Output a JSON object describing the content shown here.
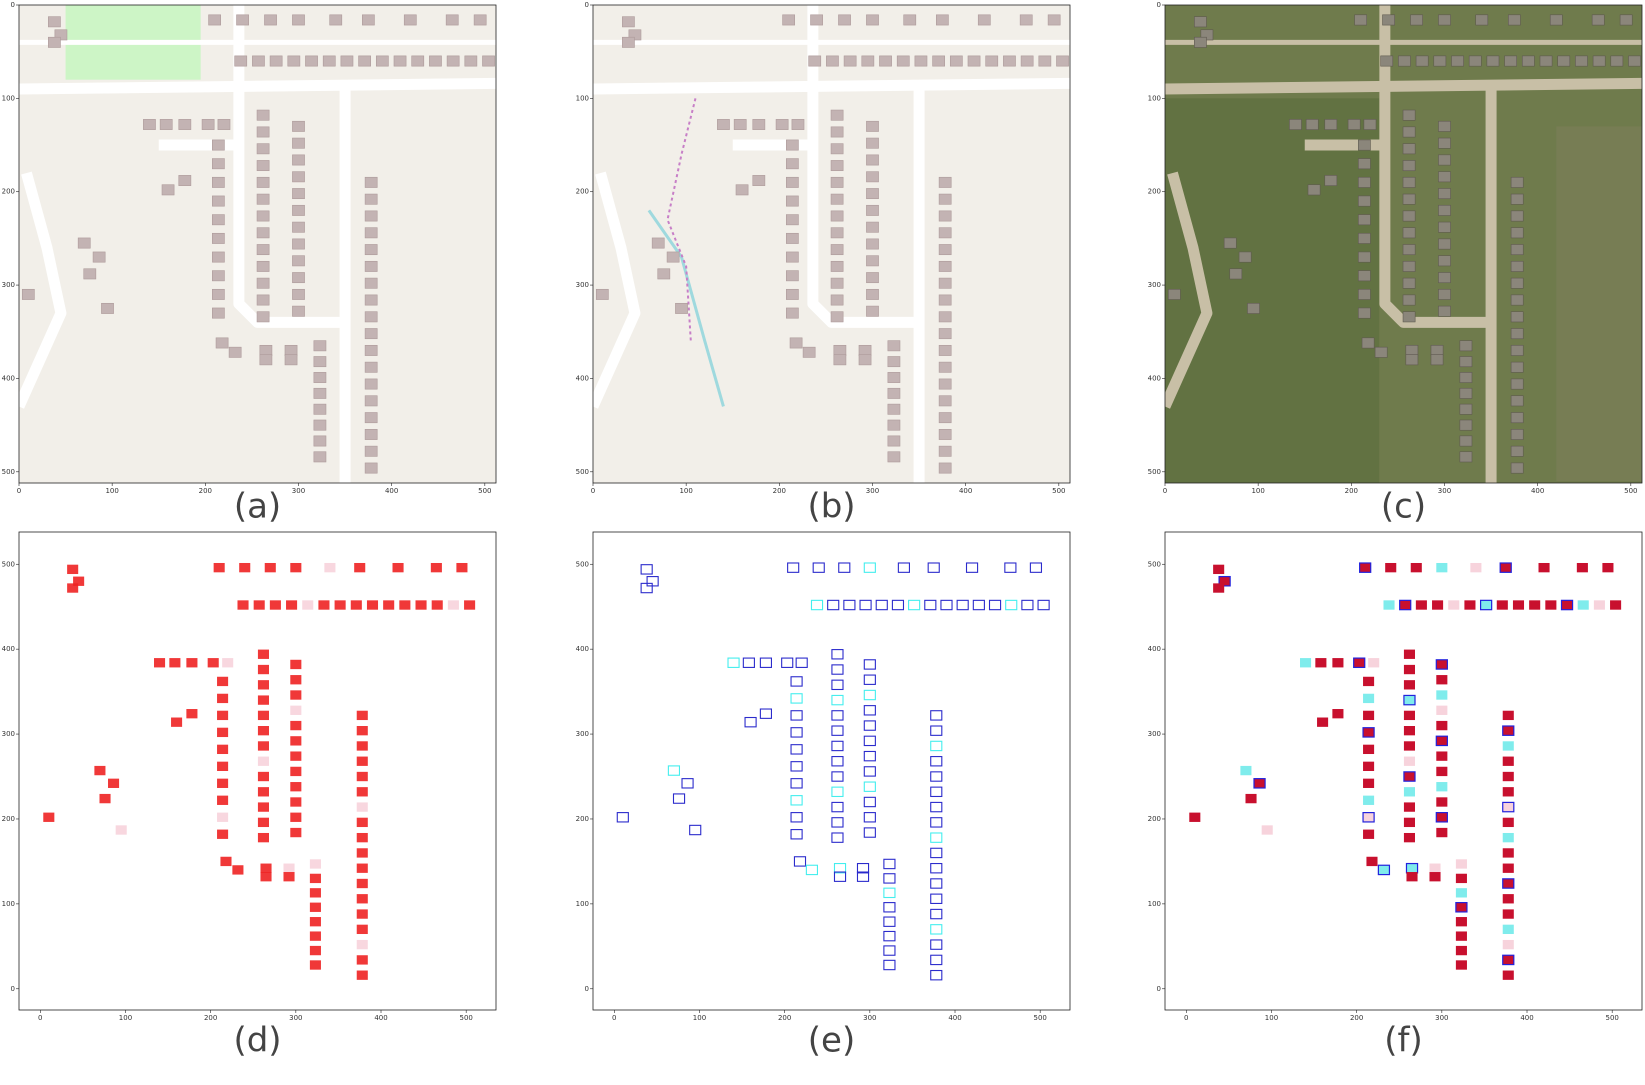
{
  "panels": [
    {
      "label": "(a)",
      "xlim": [
        0,
        512
      ],
      "ylim": [
        512,
        0
      ],
      "xticks": [
        0,
        100,
        200,
        300,
        400,
        500
      ],
      "yticks": [
        0,
        100,
        200,
        300,
        400,
        500
      ]
    },
    {
      "label": "(b)",
      "xlim": [
        0,
        512
      ],
      "ylim": [
        512,
        0
      ],
      "xticks": [
        0,
        100,
        200,
        300,
        400,
        500
      ],
      "yticks": [
        0,
        100,
        200,
        300,
        400,
        500
      ]
    },
    {
      "label": "(c)",
      "xlim": [
        0,
        512
      ],
      "ylim": [
        512,
        0
      ],
      "xticks": [
        0,
        100,
        200,
        300,
        400,
        500
      ],
      "yticks": [
        0,
        100,
        200,
        300,
        400,
        500
      ]
    },
    {
      "label": "(d)",
      "xlim": [
        -25,
        535
      ],
      "ylim": [
        -25,
        538
      ],
      "xticks": [
        0,
        100,
        200,
        300,
        400,
        500
      ],
      "yticks": [
        0,
        100,
        200,
        300,
        400,
        500
      ]
    },
    {
      "label": "(e)",
      "xlim": [
        -25,
        535
      ],
      "ylim": [
        -25,
        538
      ],
      "xticks": [
        0,
        100,
        200,
        300,
        400,
        500
      ],
      "yticks": [
        0,
        100,
        200,
        300,
        400,
        500
      ]
    },
    {
      "label": "(f)",
      "xlim": [
        -25,
        535
      ],
      "ylim": [
        -25,
        538
      ],
      "xticks": [
        0,
        100,
        200,
        300,
        400,
        500
      ],
      "yticks": [
        0,
        100,
        200,
        300,
        400,
        500
      ]
    }
  ]
}
